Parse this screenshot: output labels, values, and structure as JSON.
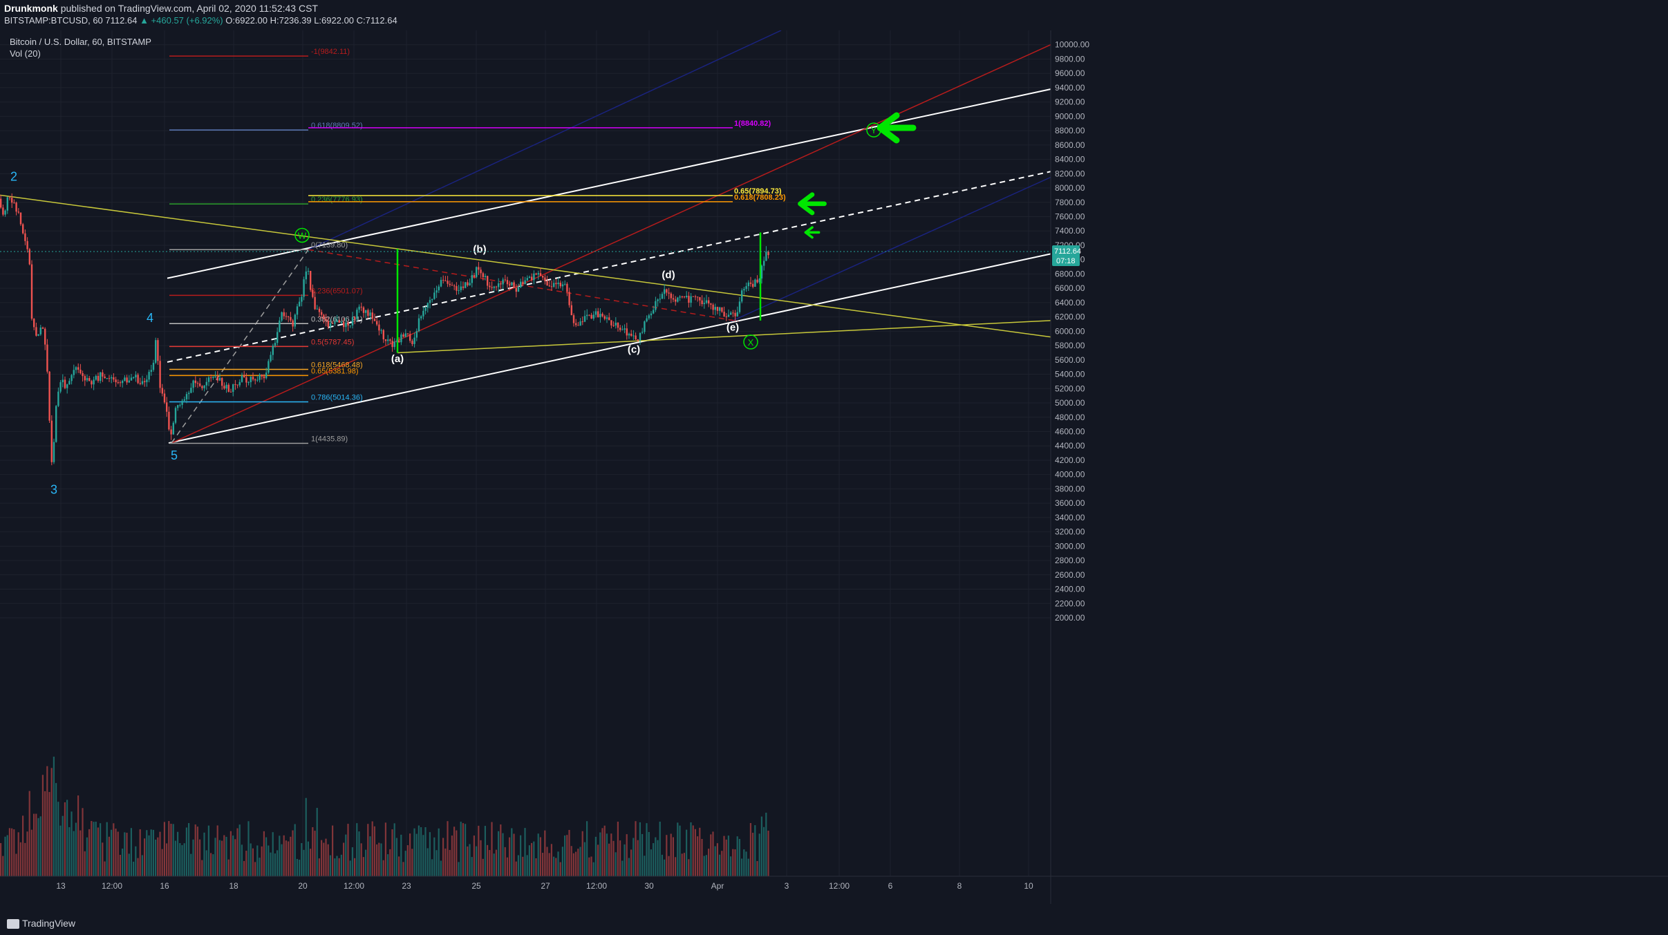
{
  "header": {
    "author": "Drunkmonk",
    "published_text": "published on TradingView.com, April 02, 2020 11:52:43 CST",
    "symbol_line": "BITSTAMP:BTCUSD, 60",
    "price": "7112.64",
    "change": "▲ +460.57 (+6.92%)",
    "ohlc": "O:6922.00 H:7236.39 L:6922.00 C:7112.64"
  },
  "legend": {
    "instrument": "Bitcoin / U.S. Dollar, 60, BITSTAMP",
    "volume": "Vol (20)"
  },
  "footer": {
    "brand": "TradingView"
  },
  "colors": {
    "background": "#131722",
    "grid": "#1e222d",
    "up": "#26a69a",
    "down": "#ef5350",
    "white_line": "#ffffff",
    "red_line": "#b71c1c",
    "blue_line": "#1a237e",
    "yellow_line": "#c8c83a",
    "green_mark": "#00e600",
    "wave_label": "#29b6f6"
  },
  "chart_data": {
    "type": "candlestick",
    "x_axis": {
      "tick_labels": [
        "13",
        "12:00",
        "16",
        "18",
        "20",
        "12:00",
        "23",
        "25",
        "27",
        "12:00",
        "30",
        "Apr",
        "3",
        "12:00",
        "6",
        "8",
        "10"
      ]
    },
    "y_axis": {
      "range": [
        2000,
        10200
      ],
      "tick_labels": [
        "10000.00",
        "9800.00",
        "9600.00",
        "9400.00",
        "9200.00",
        "9000.00",
        "8800.00",
        "8600.00",
        "8400.00",
        "8200.00",
        "8000.00",
        "7800.00",
        "7600.00",
        "7400.00",
        "7200.00",
        "7000.00",
        "6800.00",
        "6600.00",
        "6400.00",
        "6200.00",
        "6000.00",
        "5800.00",
        "5600.00",
        "5400.00",
        "5200.00",
        "5000.00",
        "4800.00",
        "4600.00",
        "4400.00",
        "4200.00",
        "4000.00",
        "3800.00",
        "3600.00",
        "3400.00",
        "3200.00",
        "3000.00",
        "2800.00",
        "2600.00",
        "2400.00",
        "2200.00",
        "2000.00"
      ],
      "last_price_label": "7112.64",
      "countdown_label": "07:18"
    },
    "price_path": [
      {
        "t": 0,
        "p": 7850
      },
      {
        "t": 3,
        "p": 7700
      },
      {
        "t": 8,
        "p": 7650
      },
      {
        "t": 14,
        "p": 7950
      },
      {
        "t": 20,
        "p": 7800
      },
      {
        "t": 28,
        "p": 7650
      },
      {
        "t": 36,
        "p": 7350
      },
      {
        "t": 44,
        "p": 7100
      },
      {
        "t": 48,
        "p": 6200
      },
      {
        "t": 55,
        "p": 5900
      },
      {
        "t": 62,
        "p": 6100
      },
      {
        "t": 68,
        "p": 5800
      },
      {
        "t": 72,
        "p": 5200
      },
      {
        "t": 76,
        "p": 4100
      },
      {
        "t": 80,
        "p": 4500
      },
      {
        "t": 84,
        "p": 5100
      },
      {
        "t": 92,
        "p": 5300
      },
      {
        "t": 100,
        "p": 5200
      },
      {
        "t": 110,
        "p": 5500
      },
      {
        "t": 120,
        "p": 5400
      },
      {
        "t": 135,
        "p": 5300
      },
      {
        "t": 150,
        "p": 5400
      },
      {
        "t": 165,
        "p": 5350
      },
      {
        "t": 180,
        "p": 5300
      },
      {
        "t": 195,
        "p": 5350
      },
      {
        "t": 210,
        "p": 5300
      },
      {
        "t": 222,
        "p": 5450
      },
      {
        "t": 228,
        "p": 5900
      },
      {
        "t": 232,
        "p": 5300
      },
      {
        "t": 238,
        "p": 5150
      },
      {
        "t": 244,
        "p": 4850
      },
      {
        "t": 248,
        "p": 4450
      },
      {
        "t": 256,
        "p": 4900
      },
      {
        "t": 268,
        "p": 5000
      },
      {
        "t": 280,
        "p": 5300
      },
      {
        "t": 295,
        "p": 5250
      },
      {
        "t": 310,
        "p": 5400
      },
      {
        "t": 322,
        "p": 5300
      },
      {
        "t": 335,
        "p": 5150
      },
      {
        "t": 350,
        "p": 5350
      },
      {
        "t": 370,
        "p": 5300
      },
      {
        "t": 385,
        "p": 5400
      },
      {
        "t": 398,
        "p": 5800
      },
      {
        "t": 410,
        "p": 6300
      },
      {
        "t": 425,
        "p": 6100
      },
      {
        "t": 438,
        "p": 6500
      },
      {
        "t": 446,
        "p": 6900
      },
      {
        "t": 455,
        "p": 6400
      },
      {
        "t": 465,
        "p": 6200
      },
      {
        "t": 478,
        "p": 6100
      },
      {
        "t": 490,
        "p": 6200
      },
      {
        "t": 505,
        "p": 6050
      },
      {
        "t": 520,
        "p": 6300
      },
      {
        "t": 535,
        "p": 6250
      },
      {
        "t": 548,
        "p": 6100
      },
      {
        "t": 562,
        "p": 5850
      },
      {
        "t": 575,
        "p": 5800
      },
      {
        "t": 588,
        "p": 6000
      },
      {
        "t": 598,
        "p": 5850
      },
      {
        "t": 610,
        "p": 6200
      },
      {
        "t": 625,
        "p": 6450
      },
      {
        "t": 645,
        "p": 6750
      },
      {
        "t": 662,
        "p": 6600
      },
      {
        "t": 680,
        "p": 6700
      },
      {
        "t": 695,
        "p": 6900
      },
      {
        "t": 712,
        "p": 6600
      },
      {
        "t": 730,
        "p": 6700
      },
      {
        "t": 748,
        "p": 6600
      },
      {
        "t": 765,
        "p": 6700
      },
      {
        "t": 780,
        "p": 6800
      },
      {
        "t": 795,
        "p": 6650
      },
      {
        "t": 810,
        "p": 6700
      },
      {
        "t": 822,
        "p": 6600
      },
      {
        "t": 828,
        "p": 6200
      },
      {
        "t": 840,
        "p": 6100
      },
      {
        "t": 860,
        "p": 6250
      },
      {
        "t": 880,
        "p": 6150
      },
      {
        "t": 900,
        "p": 6050
      },
      {
        "t": 915,
        "p": 5950
      },
      {
        "t": 925,
        "p": 5900
      },
      {
        "t": 935,
        "p": 6100
      },
      {
        "t": 950,
        "p": 6400
      },
      {
        "t": 965,
        "p": 6550
      },
      {
        "t": 980,
        "p": 6450
      },
      {
        "t": 1000,
        "p": 6450
      },
      {
        "t": 1020,
        "p": 6400
      },
      {
        "t": 1040,
        "p": 6300
      },
      {
        "t": 1058,
        "p": 6200
      },
      {
        "t": 1068,
        "p": 6250
      },
      {
        "t": 1075,
        "p": 6550
      },
      {
        "t": 1085,
        "p": 6650
      },
      {
        "t": 1098,
        "p": 6700
      },
      {
        "t": 1105,
        "p": 6900
      },
      {
        "t": 1112,
        "p": 7112
      }
    ],
    "fib_levels_left": [
      {
        "label": "-1(9842.11)",
        "value": 9842.11,
        "color": "#b71c1c"
      },
      {
        "label": "0.618(8809.52)",
        "value": 8809.52,
        "color": "#5c7ab8"
      },
      {
        "label": "0.236(7776.93)",
        "value": 7776.93,
        "color": "#2ca02c"
      },
      {
        "label": "0(7139.80)",
        "value": 7139.8,
        "color": "#9e9e9e"
      },
      {
        "label": "0.236(6501.07)",
        "value": 6501.07,
        "color": "#b71c1c"
      },
      {
        "label": "0.382(6106.91)",
        "value": 6106.91,
        "color": "#bdbdbd"
      },
      {
        "label": "0.5(5787.45)",
        "value": 5787.45,
        "color": "#e53935"
      },
      {
        "label": "0.618(5468.48)",
        "value": 5468.48,
        "color": "#f9a825"
      },
      {
        "label": "0.65(5381.98)",
        "value": 5381.98,
        "color": "#ff9800"
      },
      {
        "label": "0.786(5014.36)",
        "value": 5014.36,
        "color": "#29b6f6"
      },
      {
        "label": "1(4435.89)",
        "value": 4435.89,
        "color": "#9e9e9e"
      }
    ],
    "fib_levels_right": [
      {
        "label": "1(8840.82)",
        "value": 8840.82,
        "color": "#d500f9"
      },
      {
        "label": "0.65(7894.73)",
        "value": 7894.73,
        "color": "#ffeb3b"
      },
      {
        "label": "0.618(7808.23)",
        "value": 7808.23,
        "color": "#ff9800"
      }
    ],
    "wave_labels": [
      {
        "text": "2",
        "t": 20,
        "p": 8100
      },
      {
        "text": "3",
        "t": 78,
        "p": 3730
      },
      {
        "text": "4",
        "t": 217,
        "p": 6130
      },
      {
        "text": "5",
        "t": 252,
        "p": 4210
      }
    ],
    "correction_labels": [
      {
        "text": "(a)",
        "t": 575,
        "p": 5570
      },
      {
        "text": "(b)",
        "t": 694,
        "p": 7100
      },
      {
        "text": "(c)",
        "t": 917,
        "p": 5700
      },
      {
        "text": "(d)",
        "t": 967,
        "p": 6740
      },
      {
        "text": "(e)",
        "t": 1060,
        "p": 6010
      }
    ],
    "circle_labels": [
      {
        "text": "W",
        "t": 437,
        "p": 7340
      },
      {
        "text": "X",
        "t": 1086,
        "p": 5850
      },
      {
        "text": "Y",
        "t": 1264,
        "p": 8810
      }
    ],
    "trend_lines": [
      {
        "name": "upper-channel",
        "color": "#ffffff",
        "dash": false,
        "from": {
          "t": 242,
          "p": 6740
        },
        "to": {
          "t": 1520,
          "p": 9380
        }
      },
      {
        "name": "lower-channel",
        "color": "#ffffff",
        "dash": false,
        "from": {
          "t": 244,
          "p": 4440
        },
        "to": {
          "t": 1520,
          "p": 7080
        }
      },
      {
        "name": "mid-channel",
        "color": "#ffffff",
        "dash": true,
        "from": {
          "t": 242,
          "p": 5570
        },
        "to": {
          "t": 1520,
          "p": 8230
        }
      },
      {
        "name": "red-channel",
        "color": "#b71c1c",
        "dash": false,
        "from": {
          "t": 248,
          "p": 4440
        },
        "to": {
          "t": 1520,
          "p": 10000
        }
      },
      {
        "name": "blue-top",
        "color": "#1a237e",
        "dash": false,
        "from": {
          "t": 446,
          "p": 7140
        },
        "to": {
          "t": 1130,
          "p": 10200
        }
      },
      {
        "name": "blue-bottom",
        "color": "#1a237e",
        "dash": false,
        "from": {
          "t": 1058,
          "p": 6140
        },
        "to": {
          "t": 1520,
          "p": 8150
        }
      },
      {
        "name": "yellow-top",
        "color": "#c8c83a",
        "dash": false,
        "from": {
          "t": 0,
          "p": 7900
        },
        "to": {
          "t": 1520,
          "p": 5920
        }
      },
      {
        "name": "yellow-bottom",
        "color": "#c8c83a",
        "dash": false,
        "from": {
          "t": 575,
          "p": 5700
        },
        "to": {
          "t": 1520,
          "p": 6150
        }
      },
      {
        "name": "red-dashed",
        "color": "#b71c1c",
        "dash": true,
        "from": {
          "t": 446,
          "p": 7140
        },
        "to": {
          "t": 1068,
          "p": 6140
        }
      },
      {
        "name": "grey-dashed",
        "color": "#9e9e9e",
        "dash": true,
        "from": {
          "t": 248,
          "p": 4440
        },
        "to": {
          "t": 446,
          "p": 7140
        }
      }
    ],
    "vertical_markers": [
      {
        "t": 575,
        "p_from": 5700,
        "p_to": 7150
      },
      {
        "t": 1100,
        "p_from": 6150,
        "p_to": 7380
      }
    ],
    "arrows": [
      {
        "t": 1297,
        "p": 8840,
        "size": "large"
      },
      {
        "t": 1175,
        "p": 7780,
        "size": "medium"
      },
      {
        "t": 1175,
        "p": 7380,
        "size": "small"
      }
    ],
    "volume_note": "volume bars occupy bottom pane, highest near capitulation at label 3"
  }
}
